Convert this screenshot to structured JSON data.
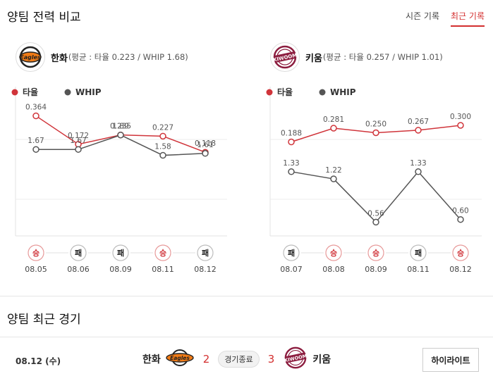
{
  "comparison": {
    "title": "양팀 전력 비교",
    "tabs": [
      {
        "label": "시즌 기록",
        "active": false
      },
      {
        "label": "최근 기록",
        "active": true
      }
    ]
  },
  "legend": {
    "avg_label": "타율",
    "whip_label": "WHIP",
    "avg_color": "#d0343a",
    "whip_color": "#555555"
  },
  "teams": [
    {
      "name": "한화",
      "summary": "(평균 : 타율 0.223 / WHIP 1.68)",
      "logo_icon": "hanwha-eagles-logo",
      "games": [
        {
          "result": "승",
          "date": "08.05",
          "avg": 0.364,
          "avg_label": "0.364",
          "whip": 1.67,
          "whip_label": "1.67"
        },
        {
          "result": "패",
          "date": "08.06",
          "avg": 0.172,
          "avg_label": "0.172",
          "whip": 1.67,
          "whip_label": "1.67"
        },
        {
          "result": "패",
          "date": "08.09",
          "avg": 0.235,
          "avg_label": "0.235",
          "whip": 1.89,
          "whip_label": "1.89"
        },
        {
          "result": "승",
          "date": "08.11",
          "avg": 0.227,
          "avg_label": "0.227",
          "whip": 1.58,
          "whip_label": "1.58"
        },
        {
          "result": "패",
          "date": "08.12",
          "avg": 0.118,
          "avg_label": "0.118",
          "whip": 1.61,
          "whip_label": "1.61"
        }
      ]
    },
    {
      "name": "키움",
      "summary": "(평균 : 타율 0.257 / WHIP 1.01)",
      "logo_icon": "kiwoom-heroes-logo",
      "games": [
        {
          "result": "패",
          "date": "08.07",
          "avg": 0.188,
          "avg_label": "0.188",
          "whip": 1.33,
          "whip_label": "1.33"
        },
        {
          "result": "승",
          "date": "08.08",
          "avg": 0.281,
          "avg_label": "0.281",
          "whip": 1.22,
          "whip_label": "1.22"
        },
        {
          "result": "승",
          "date": "08.09",
          "avg": 0.25,
          "avg_label": "0.250",
          "whip": 0.56,
          "whip_label": "0.56"
        },
        {
          "result": "패",
          "date": "08.11",
          "avg": 0.267,
          "avg_label": "0.267",
          "whip": 1.33,
          "whip_label": "1.33"
        },
        {
          "result": "승",
          "date": "08.12",
          "avg": 0.3,
          "avg_label": "0.300",
          "whip": 0.6,
          "whip_label": "0.60"
        }
      ]
    }
  ],
  "recent": {
    "title": "양팀 최근 경기",
    "game": {
      "date": "08.12 (수)",
      "home": "한화",
      "home_score": "2",
      "status": "경기종료",
      "away_score": "3",
      "away": "키움",
      "highlight_label": "하이라이트"
    }
  },
  "chart_data": [
    {
      "type": "line",
      "categories": [
        "08.05",
        "08.06",
        "08.09",
        "08.11",
        "08.12"
      ],
      "series": [
        {
          "name": "타율",
          "values": [
            0.364,
            0.172,
            0.235,
            0.227,
            0.118
          ]
        },
        {
          "name": "WHIP",
          "values": [
            1.67,
            1.67,
            1.89,
            1.58,
            1.61
          ]
        }
      ],
      "results": [
        "승",
        "패",
        "패",
        "승",
        "패"
      ],
      "legend": "top-left"
    },
    {
      "type": "line",
      "categories": [
        "08.07",
        "08.08",
        "08.09",
        "08.11",
        "08.12"
      ],
      "series": [
        {
          "name": "타율",
          "values": [
            0.188,
            0.281,
            0.25,
            0.267,
            0.3
          ]
        },
        {
          "name": "WHIP",
          "values": [
            1.33,
            1.22,
            0.56,
            1.33,
            0.6
          ]
        }
      ],
      "results": [
        "패",
        "승",
        "승",
        "패",
        "승"
      ],
      "legend": "top-left"
    }
  ]
}
